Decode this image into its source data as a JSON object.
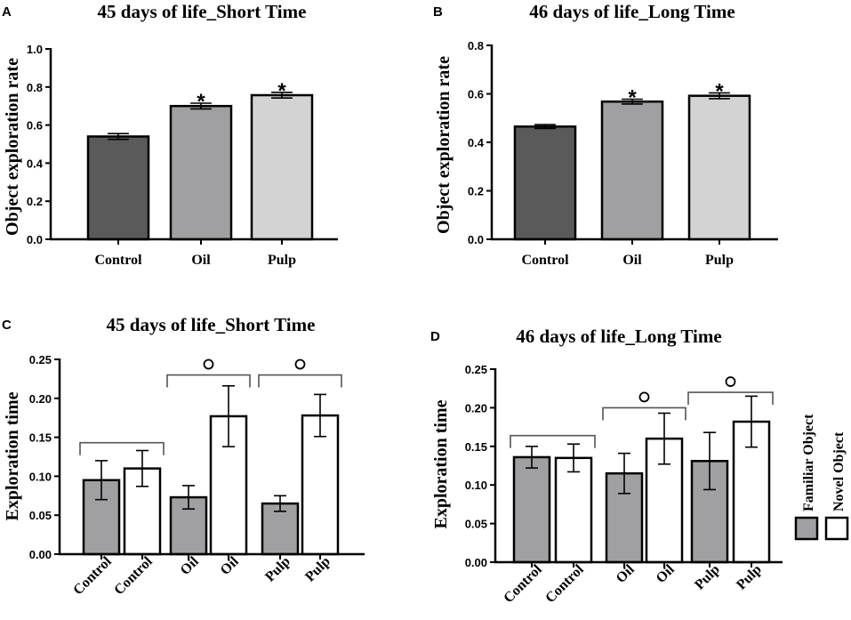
{
  "chart_data": [
    {
      "panel": "A",
      "type": "bar",
      "title": "45 days of life_Short Time",
      "xlabel": "",
      "ylabel": "Object exploration rate",
      "ylim": [
        0,
        1.0
      ],
      "yticks": [
        0.0,
        0.2,
        0.4,
        0.6,
        0.8,
        1.0
      ],
      "ytick_labels": [
        "0.0",
        "0.2",
        "0.4",
        "0.6",
        "0.8",
        "1.0"
      ],
      "categories": [
        "Control",
        "Oil",
        "Pulp"
      ],
      "values": [
        0.54,
        0.7,
        0.757
      ],
      "errors": [
        0.015,
        0.015,
        0.015
      ],
      "colors": [
        "#5a5a5a",
        "#a0a0a2",
        "#d3d3d3"
      ],
      "annotations": [
        "",
        "*",
        "*"
      ]
    },
    {
      "panel": "B",
      "type": "bar",
      "title": "46 days of life_Long Time",
      "xlabel": "",
      "ylabel": "Object exploration rate",
      "ylim": [
        0,
        0.8
      ],
      "yticks": [
        0.0,
        0.2,
        0.4,
        0.6,
        0.8
      ],
      "ytick_labels": [
        "0.0",
        "0.2",
        "0.4",
        "0.6",
        "0.8"
      ],
      "categories": [
        "Control",
        "Oil",
        "Pulp"
      ],
      "values": [
        0.465,
        0.568,
        0.592
      ],
      "errors": [
        0.008,
        0.01,
        0.012
      ],
      "colors": [
        "#5a5a5a",
        "#a0a0a2",
        "#d3d3d3"
      ],
      "annotations": [
        "",
        "*",
        "*"
      ]
    },
    {
      "panel": "C",
      "type": "bar",
      "title": "45 days of life_Short Time",
      "xlabel": "",
      "ylabel": "Exploration time",
      "ylim": [
        0,
        0.25
      ],
      "yticks": [
        0.0,
        0.05,
        0.1,
        0.15,
        0.2,
        0.25
      ],
      "ytick_labels": [
        "0.00",
        "0.05",
        "0.10",
        "0.15",
        "0.20",
        "0.25"
      ],
      "categories": [
        "Control",
        "Control",
        "Oil",
        "Oil",
        "Pulp",
        "Pulp"
      ],
      "values": [
        0.095,
        0.11,
        0.073,
        0.177,
        0.065,
        0.178
      ],
      "errors": [
        0.025,
        0.023,
        0.015,
        0.039,
        0.01,
        0.027
      ],
      "colors": [
        "#a0a0a2",
        "#ffffff",
        "#a0a0a2",
        "#ffffff",
        "#a0a0a2",
        "#ffffff"
      ],
      "brackets": [
        {
          "from": 0,
          "to": 1,
          "y": 0.143,
          "label": ""
        },
        {
          "from": 2,
          "to": 3,
          "y": 0.23,
          "label": "o"
        },
        {
          "from": 4,
          "to": 5,
          "y": 0.23,
          "label": "o"
        }
      ]
    },
    {
      "panel": "D",
      "type": "bar",
      "title": "46 days of life_Long Time",
      "xlabel": "",
      "ylabel": "Exploration time",
      "ylim": [
        0,
        0.25
      ],
      "yticks": [
        0.0,
        0.05,
        0.1,
        0.15,
        0.2,
        0.25
      ],
      "ytick_labels": [
        "0.00",
        "0.05",
        "0.10",
        "0.15",
        "0.20",
        "0.25"
      ],
      "categories": [
        "Control",
        "Control",
        "Oil",
        "Oil",
        "Pulp",
        "Pulp"
      ],
      "values": [
        0.136,
        0.135,
        0.115,
        0.16,
        0.131,
        0.182
      ],
      "errors": [
        0.014,
        0.018,
        0.026,
        0.033,
        0.037,
        0.033
      ],
      "colors": [
        "#a0a0a2",
        "#ffffff",
        "#a0a0a2",
        "#ffffff",
        "#a0a0a2",
        "#ffffff"
      ],
      "brackets": [
        {
          "from": 0,
          "to": 1,
          "y": 0.164,
          "label": ""
        },
        {
          "from": 2,
          "to": 3,
          "y": 0.2,
          "label": "o"
        },
        {
          "from": 4,
          "to": 5,
          "y": 0.22,
          "label": "o"
        }
      ],
      "legend": {
        "placement": "right",
        "entries": [
          {
            "label": "Familiar Object",
            "color": "#a0a0a2"
          },
          {
            "label": "Novel Object",
            "color": "#ffffff"
          }
        ]
      }
    }
  ]
}
